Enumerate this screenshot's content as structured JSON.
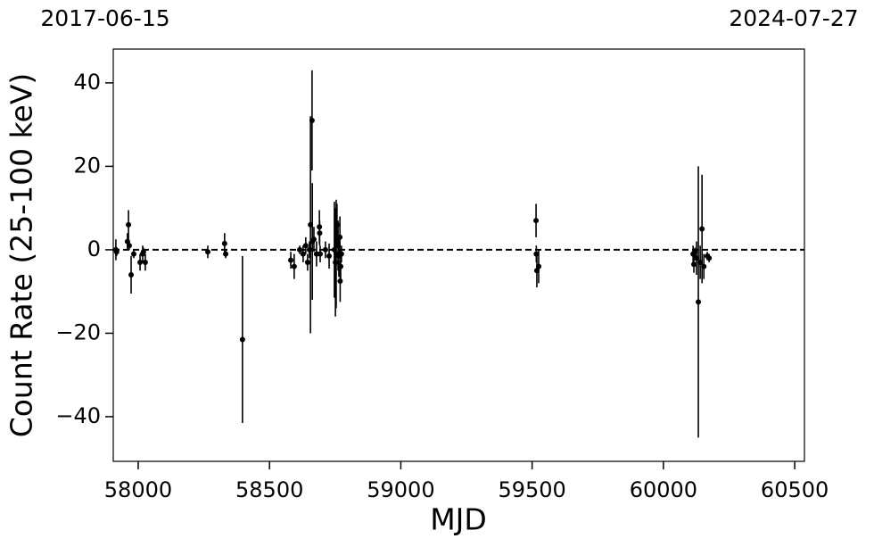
{
  "chart_data": {
    "type": "errorbar",
    "x_label": "MJD",
    "y_label": "Count Rate (25-100 keV)",
    "top_left_label": "2017-06-15",
    "top_right_label": "2024-07-27",
    "color": "#000000",
    "hline": 0,
    "xlim": [
      57905,
      60537
    ],
    "ylim": [
      -50.7,
      48.1
    ],
    "xticks": [
      58000,
      58500,
      59000,
      59500,
      60000,
      60500
    ],
    "yticks": [
      {
        "value": -40,
        "label": "−40"
      },
      {
        "value": -20,
        "label": "−20"
      },
      0,
      20,
      40
    ],
    "x": [
      57915,
      57918,
      57959,
      57963,
      57966,
      57973,
      57983,
      58007,
      58017,
      58020,
      58027,
      58265,
      58329,
      58333,
      58397,
      58581,
      58594,
      58615,
      58628,
      58638,
      58645,
      58652,
      58656,
      58662,
      58663,
      58669,
      58679,
      58690,
      58691,
      58693,
      58713,
      58727,
      58747,
      58751,
      58754,
      58757,
      58761,
      58764,
      58768,
      58769,
      58771,
      58774,
      59515,
      59516,
      59518,
      59525,
      60113,
      60116,
      60120,
      60126,
      60133,
      60140,
      60147,
      60154,
      60167,
      60174
    ],
    "values": [
      0,
      -0.5,
      2,
      6,
      1,
      -6,
      -1,
      -3,
      -1,
      -0.5,
      -3,
      -0.5,
      1.5,
      -1,
      -21.5,
      -2.5,
      -4,
      0,
      -1,
      1,
      -3,
      0,
      6,
      31,
      2,
      2.5,
      -1,
      5.5,
      4,
      -1,
      0,
      -1.5,
      0,
      -3,
      -1,
      6,
      1,
      -1.5,
      3,
      -7.5,
      -4,
      -1,
      7,
      -1,
      -5,
      -4,
      -1,
      -3.5,
      -0.5,
      -2,
      -12.5,
      -3,
      5,
      -4,
      -1.5,
      -2
    ],
    "errors": [
      2.5,
      1,
      2,
      3.5,
      1,
      4.5,
      1,
      2,
      2,
      1,
      2,
      1.5,
      2.5,
      1,
      20,
      2,
      3,
      1,
      2,
      2,
      2,
      2,
      26,
      12,
      14,
      3,
      3,
      4,
      3,
      2,
      2,
      3,
      11.5,
      13,
      13,
      5,
      6,
      5,
      5,
      5,
      3,
      2,
      4,
      2,
      4,
      4,
      2,
      2,
      1,
      4,
      32.5,
      4,
      13,
      3,
      1,
      1
    ]
  }
}
